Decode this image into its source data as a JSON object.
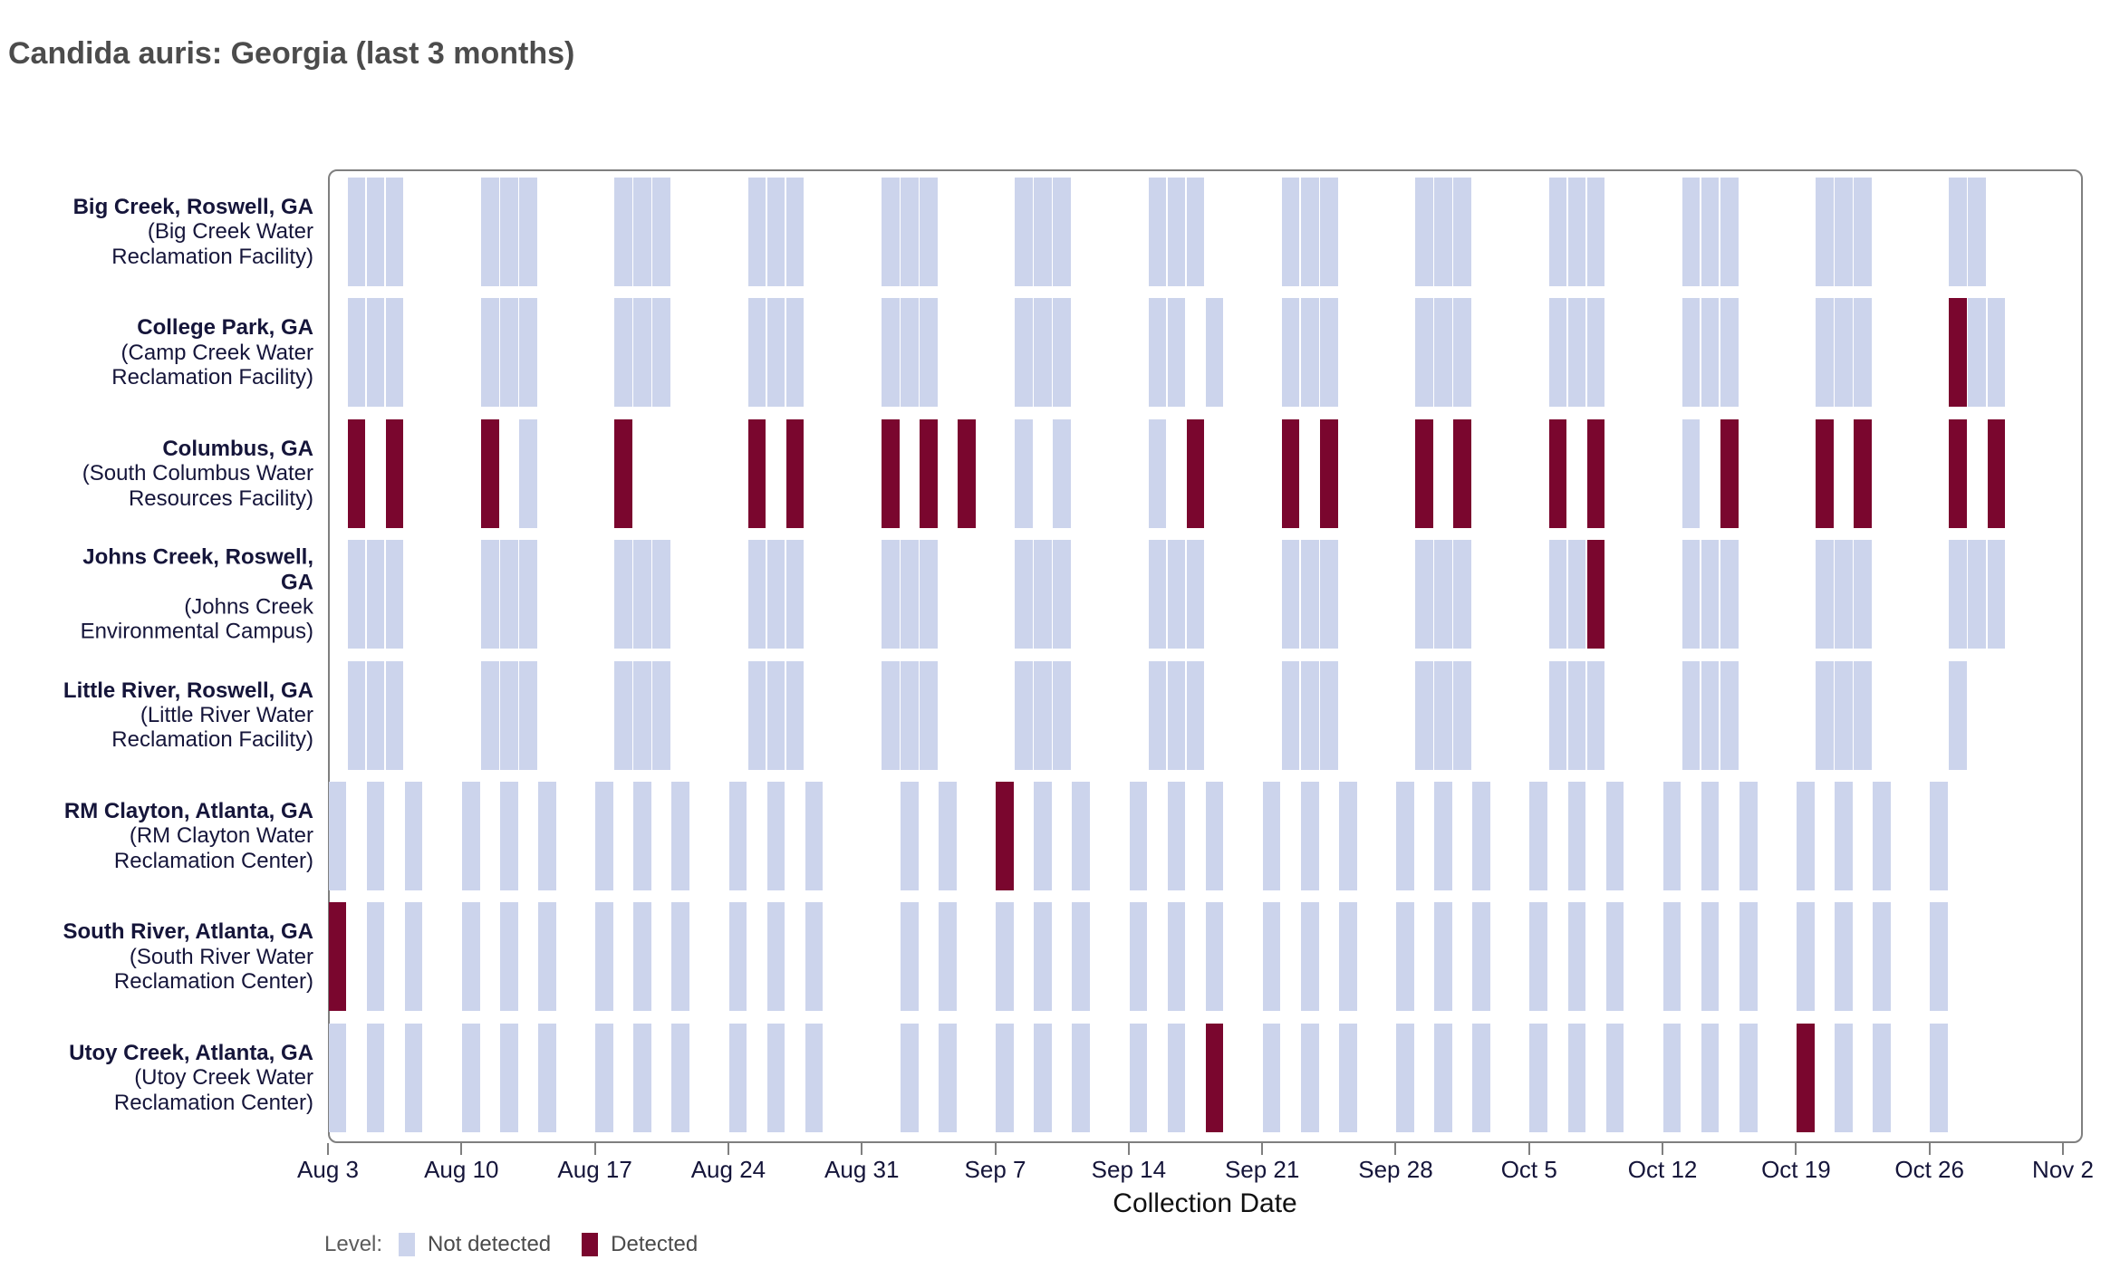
{
  "title": "Candida auris: Georgia (last 3 months)",
  "colors": {
    "not_detected": "#ccd4ec",
    "detected": "#7a062e",
    "plot_border": "#7f7f7f",
    "axis_text": "#15153a",
    "title_text": "#4c4c4c"
  },
  "legend": {
    "label": "Level:",
    "items": [
      {
        "label": "Not detected",
        "color": "#ccd4ec"
      },
      {
        "label": "Detected",
        "color": "#7a062e"
      }
    ]
  },
  "chart_data": {
    "type": "heatmap",
    "title": "Candida auris: Georgia (last 3 months)",
    "xlabel": "Collection Date",
    "ylabel": "",
    "grid": false,
    "legend_position": "bottom-left",
    "value_domain": [
      "Not detected",
      "Detected"
    ],
    "x_axis": {
      "start_date": "Aug 3",
      "end_date": "Nov 2",
      "ticks": [
        "Aug 3",
        "Aug 10",
        "Aug 17",
        "Aug 24",
        "Aug 31",
        "Sep 7",
        "Sep 14",
        "Sep 21",
        "Sep 28",
        "Oct 5",
        "Oct 12",
        "Oct 19",
        "Oct 26",
        "Nov 2"
      ]
    },
    "sample_format": "[date, detected_flag] where 1 = Detected, 0 = Not detected",
    "rows": [
      {
        "city": "Big Creek, Roswell, GA",
        "facility": "(Big Creek Water\nReclamation Facility)",
        "samples": [
          [
            "Aug 4",
            0
          ],
          [
            "Aug 5",
            0
          ],
          [
            "Aug 6",
            0
          ],
          [
            "Aug 11",
            0
          ],
          [
            "Aug 12",
            0
          ],
          [
            "Aug 13",
            0
          ],
          [
            "Aug 18",
            0
          ],
          [
            "Aug 19",
            0
          ],
          [
            "Aug 20",
            0
          ],
          [
            "Aug 25",
            0
          ],
          [
            "Aug 26",
            0
          ],
          [
            "Aug 27",
            0
          ],
          [
            "Sep 1",
            0
          ],
          [
            "Sep 2",
            0
          ],
          [
            "Sep 3",
            0
          ],
          [
            "Sep 8",
            0
          ],
          [
            "Sep 9",
            0
          ],
          [
            "Sep 10",
            0
          ],
          [
            "Sep 15",
            0
          ],
          [
            "Sep 16",
            0
          ],
          [
            "Sep 17",
            0
          ],
          [
            "Sep 22",
            0
          ],
          [
            "Sep 23",
            0
          ],
          [
            "Sep 24",
            0
          ],
          [
            "Sep 29",
            0
          ],
          [
            "Sep 30",
            0
          ],
          [
            "Oct 1",
            0
          ],
          [
            "Oct 6",
            0
          ],
          [
            "Oct 7",
            0
          ],
          [
            "Oct 8",
            0
          ],
          [
            "Oct 13",
            0
          ],
          [
            "Oct 14",
            0
          ],
          [
            "Oct 15",
            0
          ],
          [
            "Oct 20",
            0
          ],
          [
            "Oct 21",
            0
          ],
          [
            "Oct 22",
            0
          ],
          [
            "Oct 27",
            0
          ],
          [
            "Oct 28",
            0
          ]
        ]
      },
      {
        "city": "College Park, GA",
        "facility": "(Camp Creek Water\nReclamation Facility)",
        "samples": [
          [
            "Aug 4",
            0
          ],
          [
            "Aug 5",
            0
          ],
          [
            "Aug 6",
            0
          ],
          [
            "Aug 11",
            0
          ],
          [
            "Aug 12",
            0
          ],
          [
            "Aug 13",
            0
          ],
          [
            "Aug 18",
            0
          ],
          [
            "Aug 19",
            0
          ],
          [
            "Aug 20",
            0
          ],
          [
            "Aug 25",
            0
          ],
          [
            "Aug 26",
            0
          ],
          [
            "Aug 27",
            0
          ],
          [
            "Sep 1",
            0
          ],
          [
            "Sep 2",
            0
          ],
          [
            "Sep 3",
            0
          ],
          [
            "Sep 8",
            0
          ],
          [
            "Sep 9",
            0
          ],
          [
            "Sep 10",
            0
          ],
          [
            "Sep 15",
            0
          ],
          [
            "Sep 16",
            0
          ],
          [
            "Sep 18",
            0
          ],
          [
            "Sep 22",
            0
          ],
          [
            "Sep 23",
            0
          ],
          [
            "Sep 24",
            0
          ],
          [
            "Sep 29",
            0
          ],
          [
            "Sep 30",
            0
          ],
          [
            "Oct 1",
            0
          ],
          [
            "Oct 6",
            0
          ],
          [
            "Oct 7",
            0
          ],
          [
            "Oct 8",
            0
          ],
          [
            "Oct 13",
            0
          ],
          [
            "Oct 14",
            0
          ],
          [
            "Oct 15",
            0
          ],
          [
            "Oct 20",
            0
          ],
          [
            "Oct 21",
            0
          ],
          [
            "Oct 22",
            0
          ],
          [
            "Oct 27",
            1
          ],
          [
            "Oct 28",
            0
          ],
          [
            "Oct 29",
            0
          ]
        ]
      },
      {
        "city": "Columbus, GA",
        "facility": "(South Columbus Water\nResources Facility)",
        "samples": [
          [
            "Aug 4",
            1
          ],
          [
            "Aug 6",
            1
          ],
          [
            "Aug 11",
            1
          ],
          [
            "Aug 13",
            0
          ],
          [
            "Aug 18",
            1
          ],
          [
            "Aug 25",
            1
          ],
          [
            "Aug 27",
            1
          ],
          [
            "Sep 1",
            1
          ],
          [
            "Sep 3",
            1
          ],
          [
            "Sep 5",
            1
          ],
          [
            "Sep 8",
            0
          ],
          [
            "Sep 10",
            0
          ],
          [
            "Sep 15",
            0
          ],
          [
            "Sep 17",
            1
          ],
          [
            "Sep 22",
            1
          ],
          [
            "Sep 24",
            1
          ],
          [
            "Sep 29",
            1
          ],
          [
            "Oct 1",
            1
          ],
          [
            "Oct 6",
            1
          ],
          [
            "Oct 8",
            1
          ],
          [
            "Oct 13",
            0
          ],
          [
            "Oct 15",
            1
          ],
          [
            "Oct 20",
            1
          ],
          [
            "Oct 22",
            1
          ],
          [
            "Oct 27",
            1
          ],
          [
            "Oct 29",
            1
          ]
        ]
      },
      {
        "city": "Johns Creek, Roswell,\nGA",
        "facility": "(Johns Creek\nEnvironmental Campus)",
        "samples": [
          [
            "Aug 4",
            0
          ],
          [
            "Aug 5",
            0
          ],
          [
            "Aug 6",
            0
          ],
          [
            "Aug 11",
            0
          ],
          [
            "Aug 12",
            0
          ],
          [
            "Aug 13",
            0
          ],
          [
            "Aug 18",
            0
          ],
          [
            "Aug 19",
            0
          ],
          [
            "Aug 20",
            0
          ],
          [
            "Aug 25",
            0
          ],
          [
            "Aug 26",
            0
          ],
          [
            "Aug 27",
            0
          ],
          [
            "Sep 1",
            0
          ],
          [
            "Sep 2",
            0
          ],
          [
            "Sep 3",
            0
          ],
          [
            "Sep 8",
            0
          ],
          [
            "Sep 9",
            0
          ],
          [
            "Sep 10",
            0
          ],
          [
            "Sep 15",
            0
          ],
          [
            "Sep 16",
            0
          ],
          [
            "Sep 17",
            0
          ],
          [
            "Sep 22",
            0
          ],
          [
            "Sep 23",
            0
          ],
          [
            "Sep 24",
            0
          ],
          [
            "Sep 29",
            0
          ],
          [
            "Sep 30",
            0
          ],
          [
            "Oct 1",
            0
          ],
          [
            "Oct 6",
            0
          ],
          [
            "Oct 7",
            0
          ],
          [
            "Oct 8",
            1
          ],
          [
            "Oct 13",
            0
          ],
          [
            "Oct 14",
            0
          ],
          [
            "Oct 15",
            0
          ],
          [
            "Oct 20",
            0
          ],
          [
            "Oct 21",
            0
          ],
          [
            "Oct 22",
            0
          ],
          [
            "Oct 27",
            0
          ],
          [
            "Oct 28",
            0
          ],
          [
            "Oct 29",
            0
          ]
        ]
      },
      {
        "city": "Little River, Roswell, GA",
        "facility": "(Little River Water\nReclamation Facility)",
        "samples": [
          [
            "Aug 4",
            0
          ],
          [
            "Aug 5",
            0
          ],
          [
            "Aug 6",
            0
          ],
          [
            "Aug 11",
            0
          ],
          [
            "Aug 12",
            0
          ],
          [
            "Aug 13",
            0
          ],
          [
            "Aug 18",
            0
          ],
          [
            "Aug 19",
            0
          ],
          [
            "Aug 20",
            0
          ],
          [
            "Aug 25",
            0
          ],
          [
            "Aug 26",
            0
          ],
          [
            "Aug 27",
            0
          ],
          [
            "Sep 1",
            0
          ],
          [
            "Sep 2",
            0
          ],
          [
            "Sep 3",
            0
          ],
          [
            "Sep 8",
            0
          ],
          [
            "Sep 9",
            0
          ],
          [
            "Sep 10",
            0
          ],
          [
            "Sep 15",
            0
          ],
          [
            "Sep 16",
            0
          ],
          [
            "Sep 17",
            0
          ],
          [
            "Sep 22",
            0
          ],
          [
            "Sep 23",
            0
          ],
          [
            "Sep 24",
            0
          ],
          [
            "Sep 29",
            0
          ],
          [
            "Sep 30",
            0
          ],
          [
            "Oct 1",
            0
          ],
          [
            "Oct 6",
            0
          ],
          [
            "Oct 7",
            0
          ],
          [
            "Oct 8",
            0
          ],
          [
            "Oct 13",
            0
          ],
          [
            "Oct 14",
            0
          ],
          [
            "Oct 15",
            0
          ],
          [
            "Oct 20",
            0
          ],
          [
            "Oct 21",
            0
          ],
          [
            "Oct 22",
            0
          ],
          [
            "Oct 27",
            0
          ]
        ]
      },
      {
        "city": "RM Clayton, Atlanta, GA",
        "facility": "(RM Clayton Water\nReclamation Center)",
        "samples": [
          [
            "Aug 3",
            0
          ],
          [
            "Aug 5",
            0
          ],
          [
            "Aug 7",
            0
          ],
          [
            "Aug 10",
            0
          ],
          [
            "Aug 12",
            0
          ],
          [
            "Aug 14",
            0
          ],
          [
            "Aug 17",
            0
          ],
          [
            "Aug 19",
            0
          ],
          [
            "Aug 21",
            0
          ],
          [
            "Aug 24",
            0
          ],
          [
            "Aug 26",
            0
          ],
          [
            "Aug 28",
            0
          ],
          [
            "Sep 2",
            0
          ],
          [
            "Sep 4",
            0
          ],
          [
            "Sep 7",
            1
          ],
          [
            "Sep 9",
            0
          ],
          [
            "Sep 11",
            0
          ],
          [
            "Sep 14",
            0
          ],
          [
            "Sep 16",
            0
          ],
          [
            "Sep 18",
            0
          ],
          [
            "Sep 21",
            0
          ],
          [
            "Sep 23",
            0
          ],
          [
            "Sep 25",
            0
          ],
          [
            "Sep 28",
            0
          ],
          [
            "Sep 30",
            0
          ],
          [
            "Oct 2",
            0
          ],
          [
            "Oct 5",
            0
          ],
          [
            "Oct 7",
            0
          ],
          [
            "Oct 9",
            0
          ],
          [
            "Oct 12",
            0
          ],
          [
            "Oct 14",
            0
          ],
          [
            "Oct 16",
            0
          ],
          [
            "Oct 19",
            0
          ],
          [
            "Oct 21",
            0
          ],
          [
            "Oct 23",
            0
          ],
          [
            "Oct 26",
            0
          ]
        ]
      },
      {
        "city": "South River, Atlanta, GA",
        "facility": "(South River Water\nReclamation Center)",
        "samples": [
          [
            "Aug 3",
            1
          ],
          [
            "Aug 5",
            0
          ],
          [
            "Aug 7",
            0
          ],
          [
            "Aug 10",
            0
          ],
          [
            "Aug 12",
            0
          ],
          [
            "Aug 14",
            0
          ],
          [
            "Aug 17",
            0
          ],
          [
            "Aug 19",
            0
          ],
          [
            "Aug 21",
            0
          ],
          [
            "Aug 24",
            0
          ],
          [
            "Aug 26",
            0
          ],
          [
            "Aug 28",
            0
          ],
          [
            "Sep 2",
            0
          ],
          [
            "Sep 4",
            0
          ],
          [
            "Sep 7",
            0
          ],
          [
            "Sep 9",
            0
          ],
          [
            "Sep 11",
            0
          ],
          [
            "Sep 14",
            0
          ],
          [
            "Sep 16",
            0
          ],
          [
            "Sep 18",
            0
          ],
          [
            "Sep 21",
            0
          ],
          [
            "Sep 23",
            0
          ],
          [
            "Sep 25",
            0
          ],
          [
            "Sep 28",
            0
          ],
          [
            "Sep 30",
            0
          ],
          [
            "Oct 2",
            0
          ],
          [
            "Oct 5",
            0
          ],
          [
            "Oct 7",
            0
          ],
          [
            "Oct 9",
            0
          ],
          [
            "Oct 12",
            0
          ],
          [
            "Oct 14",
            0
          ],
          [
            "Oct 16",
            0
          ],
          [
            "Oct 19",
            0
          ],
          [
            "Oct 21",
            0
          ],
          [
            "Oct 23",
            0
          ],
          [
            "Oct 26",
            0
          ]
        ]
      },
      {
        "city": "Utoy Creek, Atlanta, GA",
        "facility": "(Utoy Creek Water\nReclamation Center)",
        "samples": [
          [
            "Aug 3",
            0
          ],
          [
            "Aug 5",
            0
          ],
          [
            "Aug 7",
            0
          ],
          [
            "Aug 10",
            0
          ],
          [
            "Aug 12",
            0
          ],
          [
            "Aug 14",
            0
          ],
          [
            "Aug 17",
            0
          ],
          [
            "Aug 19",
            0
          ],
          [
            "Aug 21",
            0
          ],
          [
            "Aug 24",
            0
          ],
          [
            "Aug 26",
            0
          ],
          [
            "Aug 28",
            0
          ],
          [
            "Sep 2",
            0
          ],
          [
            "Sep 4",
            0
          ],
          [
            "Sep 7",
            0
          ],
          [
            "Sep 9",
            0
          ],
          [
            "Sep 11",
            0
          ],
          [
            "Sep 14",
            0
          ],
          [
            "Sep 16",
            0
          ],
          [
            "Sep 18",
            1
          ],
          [
            "Sep 21",
            0
          ],
          [
            "Sep 23",
            0
          ],
          [
            "Sep 25",
            0
          ],
          [
            "Sep 28",
            0
          ],
          [
            "Sep 30",
            0
          ],
          [
            "Oct 2",
            0
          ],
          [
            "Oct 5",
            0
          ],
          [
            "Oct 7",
            0
          ],
          [
            "Oct 9",
            0
          ],
          [
            "Oct 12",
            0
          ],
          [
            "Oct 14",
            0
          ],
          [
            "Oct 16",
            0
          ],
          [
            "Oct 19",
            1
          ],
          [
            "Oct 21",
            0
          ],
          [
            "Oct 23",
            0
          ],
          [
            "Oct 26",
            0
          ]
        ]
      }
    ]
  }
}
